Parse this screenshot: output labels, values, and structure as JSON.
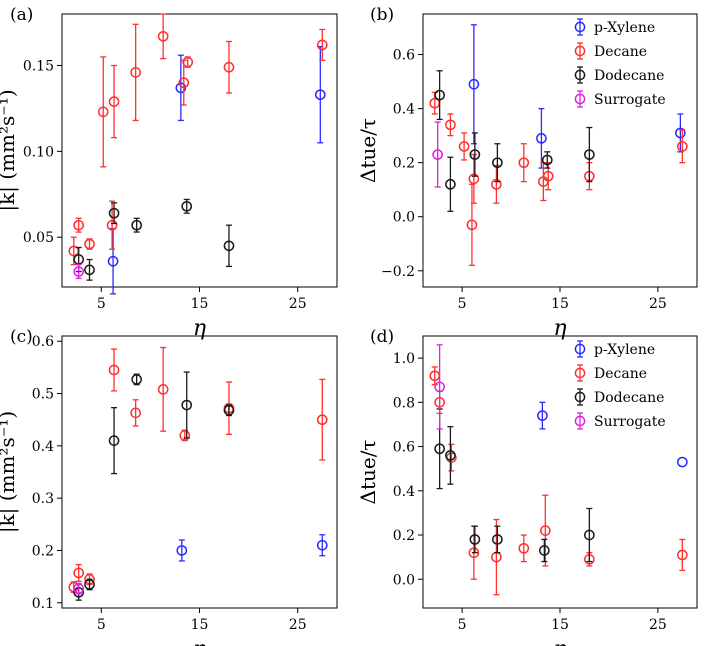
{
  "colors": {
    "p-Xylene": "#2b2bff",
    "Decane": "#ff3030",
    "Dodecane": "#1a1a1a",
    "Surrogate": "#dd22dd"
  },
  "chart_data": [
    {
      "type": "scatter",
      "panel_label": "(a)",
      "xlabel": "η",
      "ylabel": "|k| (mm²s⁻¹)",
      "xlim": [
        1,
        29
      ],
      "ylim": [
        0.021,
        0.18
      ],
      "xticks": [
        5,
        15,
        25
      ],
      "xticklabels": [
        "5",
        "15",
        "25"
      ],
      "yticks": [
        0.05,
        0.1,
        0.15
      ],
      "yticklabels": [
        "0.05",
        "0.10",
        "0.15"
      ],
      "legend": null,
      "series": [
        {
          "name": "p-Xylene",
          "points": [
            [
              6.2,
              0.036,
              0.019
            ],
            [
              13.1,
              0.137,
              0.019
            ],
            [
              27.3,
              0.133,
              0.028
            ]
          ]
        },
        {
          "name": "Decane",
          "points": [
            [
              2.2,
              0.042,
              0.008
            ],
            [
              2.7,
              0.057,
              0.004
            ],
            [
              3.8,
              0.046,
              0.003
            ],
            [
              5.2,
              0.123,
              0.032
            ],
            [
              6.1,
              0.057,
              0.014
            ],
            [
              6.3,
              0.129,
              0.021
            ],
            [
              8.5,
              0.146,
              0.028
            ],
            [
              11.3,
              0.167,
              0.013
            ],
            [
              13.4,
              0.14,
              0.013
            ],
            [
              13.8,
              0.152,
              0.003
            ],
            [
              18.0,
              0.149,
              0.015
            ],
            [
              27.5,
              0.162,
              0.009
            ]
          ]
        },
        {
          "name": "Dodecane",
          "points": [
            [
              2.7,
              0.037,
              0.007
            ],
            [
              3.8,
              0.031,
              0.006
            ],
            [
              6.3,
              0.064,
              0.006
            ],
            [
              8.6,
              0.057,
              0.004
            ],
            [
              13.7,
              0.068,
              0.004
            ],
            [
              18.0,
              0.045,
              0.012
            ]
          ]
        },
        {
          "name": "Surrogate",
          "points": [
            [
              2.7,
              0.03,
              0.004
            ]
          ]
        }
      ]
    },
    {
      "type": "scatter",
      "panel_label": "(b)",
      "xlabel": "η",
      "ylabel": "Δtue/τ",
      "xlim": [
        1,
        29
      ],
      "ylim": [
        -0.26,
        0.75
      ],
      "xticks": [
        5,
        15,
        25
      ],
      "xticklabels": [
        "5",
        "15",
        "25"
      ],
      "yticks": [
        -0.2,
        0.0,
        0.2,
        0.4,
        0.6
      ],
      "yticklabels": [
        "−0.2",
        "0.0",
        "0.2",
        "0.4",
        "0.6"
      ],
      "legend": [
        "p-Xylene",
        "Decane",
        "Dodecane",
        "Surrogate"
      ],
      "series": [
        {
          "name": "p-Xylene",
          "points": [
            [
              6.2,
              0.49,
              0.22
            ],
            [
              13.1,
              0.29,
              0.11
            ],
            [
              27.3,
              0.31,
              0.07
            ]
          ]
        },
        {
          "name": "Decane",
          "points": [
            [
              2.2,
              0.42,
              0.04
            ],
            [
              3.8,
              0.34,
              0.04
            ],
            [
              5.2,
              0.26,
              0.05
            ],
            [
              6.0,
              -0.03,
              0.15
            ],
            [
              6.2,
              0.14,
              0.09
            ],
            [
              8.5,
              0.12,
              0.07
            ],
            [
              11.3,
              0.2,
              0.07
            ],
            [
              13.3,
              0.13,
              0.07
            ],
            [
              13.8,
              0.15,
              0.05
            ],
            [
              18.0,
              0.15,
              0.05
            ],
            [
              27.5,
              0.26,
              0.06
            ]
          ]
        },
        {
          "name": "Dodecane",
          "points": [
            [
              2.7,
              0.45,
              0.09
            ],
            [
              3.8,
              0.12,
              0.1
            ],
            [
              6.3,
              0.23,
              0.08
            ],
            [
              8.6,
              0.2,
              0.07
            ],
            [
              13.7,
              0.21,
              0.03
            ],
            [
              18.0,
              0.23,
              0.1
            ]
          ]
        },
        {
          "name": "Surrogate",
          "points": [
            [
              2.5,
              0.23,
              0.12
            ]
          ]
        }
      ]
    },
    {
      "type": "scatter",
      "panel_label": "(c)",
      "xlabel": "η",
      "ylabel": "|k| (mm²s⁻¹)",
      "xlim": [
        1,
        29
      ],
      "ylim": [
        0.09,
        0.61
      ],
      "xticks": [
        5,
        15,
        25
      ],
      "xticklabels": [
        "5",
        "15",
        "25"
      ],
      "yticks": [
        0.1,
        0.2,
        0.3,
        0.4,
        0.5,
        0.6
      ],
      "yticklabels": [
        "0.1",
        "0.2",
        "0.3",
        "0.4",
        "0.5",
        "0.6"
      ],
      "legend": null,
      "series": [
        {
          "name": "p-Xylene",
          "points": [
            [
              13.2,
              0.2,
              0.02
            ],
            [
              27.5,
              0.21,
              0.02
            ]
          ]
        },
        {
          "name": "Decane",
          "points": [
            [
              2.2,
              0.13,
              0.01
            ],
            [
              2.7,
              0.157,
              0.016
            ],
            [
              3.8,
              0.145,
              0.01
            ],
            [
              6.3,
              0.545,
              0.04
            ],
            [
              8.5,
              0.463,
              0.025
            ],
            [
              11.3,
              0.508,
              0.08
            ],
            [
              13.5,
              0.42,
              0.01
            ],
            [
              18.0,
              0.472,
              0.05
            ],
            [
              27.5,
              0.45,
              0.077
            ]
          ]
        },
        {
          "name": "Dodecane",
          "points": [
            [
              2.7,
              0.12,
              0.015
            ],
            [
              3.8,
              0.135,
              0.01
            ],
            [
              6.3,
              0.41,
              0.063
            ],
            [
              8.6,
              0.527,
              0.01
            ],
            [
              13.7,
              0.478,
              0.063
            ],
            [
              18.0,
              0.468,
              0.01
            ]
          ]
        },
        {
          "name": "Surrogate",
          "points": [
            [
              2.7,
              0.127,
              0.01
            ]
          ]
        }
      ]
    },
    {
      "type": "scatter",
      "panel_label": "(d)",
      "xlabel": "η",
      "ylabel": "Δtue/τ",
      "xlim": [
        1,
        29
      ],
      "ylim": [
        -0.13,
        1.1
      ],
      "xticks": [
        5,
        15,
        25
      ],
      "xticklabels": [
        "5",
        "15",
        "25"
      ],
      "yticks": [
        0.0,
        0.2,
        0.4,
        0.6,
        0.8,
        1.0
      ],
      "yticklabels": [
        "0.0",
        "0.2",
        "0.4",
        "0.6",
        "0.8",
        "1.0"
      ],
      "legend": [
        "p-Xylene",
        "Decane",
        "Dodecane",
        "Surrogate"
      ],
      "series": [
        {
          "name": "p-Xylene",
          "points": [
            [
              13.2,
              0.74,
              0.06
            ],
            [
              27.5,
              0.53,
              0.0
            ]
          ]
        },
        {
          "name": "Decane",
          "points": [
            [
              2.2,
              0.92,
              0.04
            ],
            [
              2.7,
              0.8,
              0.05
            ],
            [
              3.9,
              0.55,
              0.06
            ],
            [
              6.2,
              0.12,
              0.12
            ],
            [
              8.5,
              0.1,
              0.17
            ],
            [
              11.3,
              0.14,
              0.06
            ],
            [
              13.5,
              0.22,
              0.16
            ],
            [
              18.0,
              0.09,
              0.03
            ],
            [
              27.5,
              0.11,
              0.07
            ]
          ]
        },
        {
          "name": "Dodecane",
          "points": [
            [
              2.7,
              0.59,
              0.18
            ],
            [
              3.8,
              0.56,
              0.13
            ],
            [
              6.3,
              0.18,
              0.06
            ],
            [
              8.6,
              0.18,
              0.06
            ],
            [
              13.4,
              0.13,
              0.05
            ],
            [
              18.0,
              0.2,
              0.12
            ]
          ]
        },
        {
          "name": "Surrogate",
          "points": [
            [
              2.7,
              0.87,
              0.19
            ]
          ]
        }
      ]
    }
  ]
}
